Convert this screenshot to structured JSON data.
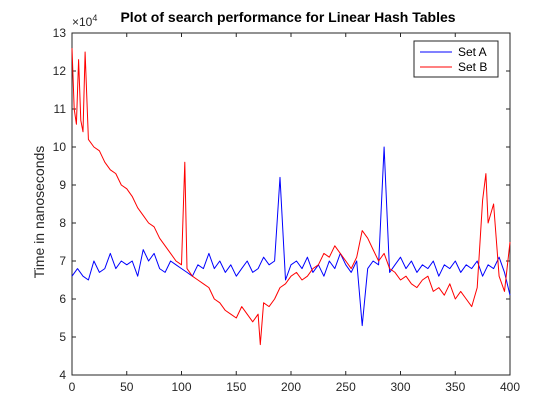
{
  "chart_data": {
    "type": "line",
    "title": "Plot of search performance for Linear Hash Tables",
    "xlabel": "",
    "ylabel": "Time in nanoseconds",
    "y_exponent_label": "×10",
    "y_exponent": "4",
    "xlim": [
      0,
      400
    ],
    "ylim": [
      4,
      13
    ],
    "x_ticks": [
      0,
      50,
      100,
      150,
      200,
      250,
      300,
      350,
      400
    ],
    "y_ticks": [
      4,
      5,
      6,
      7,
      8,
      9,
      10,
      11,
      12,
      13
    ],
    "x_tick_labels": [
      "0",
      "50",
      "100",
      "150",
      "200",
      "250",
      "300",
      "350",
      "400"
    ],
    "y_tick_labels": [
      "4",
      "5",
      "6",
      "7",
      "8",
      "9",
      "10",
      "11",
      "12",
      "13"
    ],
    "grid": false,
    "legend_position": "top-right",
    "series": [
      {
        "name": "Set A",
        "color": "#0000ff",
        "points": [
          [
            0,
            6.6
          ],
          [
            5,
            6.8
          ],
          [
            10,
            6.6
          ],
          [
            15,
            6.5
          ],
          [
            20,
            7.0
          ],
          [
            25,
            6.7
          ],
          [
            30,
            6.8
          ],
          [
            35,
            7.2
          ],
          [
            40,
            6.8
          ],
          [
            45,
            7.0
          ],
          [
            50,
            6.9
          ],
          [
            55,
            7.0
          ],
          [
            60,
            6.6
          ],
          [
            65,
            7.3
          ],
          [
            70,
            7.0
          ],
          [
            75,
            7.2
          ],
          [
            80,
            6.8
          ],
          [
            85,
            6.7
          ],
          [
            90,
            7.0
          ],
          [
            95,
            6.9
          ],
          [
            100,
            6.8
          ],
          [
            105,
            6.7
          ],
          [
            110,
            6.6
          ],
          [
            115,
            6.9
          ],
          [
            120,
            6.8
          ],
          [
            125,
            7.2
          ],
          [
            130,
            6.8
          ],
          [
            135,
            7.0
          ],
          [
            140,
            6.7
          ],
          [
            145,
            6.9
          ],
          [
            150,
            6.6
          ],
          [
            155,
            6.8
          ],
          [
            160,
            7.0
          ],
          [
            165,
            6.7
          ],
          [
            170,
            6.8
          ],
          [
            175,
            7.1
          ],
          [
            180,
            6.9
          ],
          [
            185,
            7.0
          ],
          [
            190,
            9.2
          ],
          [
            195,
            6.5
          ],
          [
            200,
            6.9
          ],
          [
            205,
            7.0
          ],
          [
            210,
            6.8
          ],
          [
            215,
            7.1
          ],
          [
            220,
            6.7
          ],
          [
            225,
            6.9
          ],
          [
            230,
            6.6
          ],
          [
            235,
            7.0
          ],
          [
            240,
            6.8
          ],
          [
            245,
            7.2
          ],
          [
            250,
            6.9
          ],
          [
            255,
            6.7
          ],
          [
            260,
            7.0
          ],
          [
            265,
            5.3
          ],
          [
            270,
            6.8
          ],
          [
            275,
            7.0
          ],
          [
            280,
            6.9
          ],
          [
            285,
            10.0
          ],
          [
            290,
            6.7
          ],
          [
            295,
            6.9
          ],
          [
            300,
            7.1
          ],
          [
            305,
            6.8
          ],
          [
            310,
            7.0
          ],
          [
            315,
            6.7
          ],
          [
            320,
            6.9
          ],
          [
            325,
            6.8
          ],
          [
            330,
            7.0
          ],
          [
            335,
            6.6
          ],
          [
            340,
            6.9
          ],
          [
            345,
            6.8
          ],
          [
            350,
            7.0
          ],
          [
            355,
            6.7
          ],
          [
            360,
            6.9
          ],
          [
            365,
            6.8
          ],
          [
            370,
            7.0
          ],
          [
            375,
            6.6
          ],
          [
            380,
            6.9
          ],
          [
            385,
            6.8
          ],
          [
            390,
            7.1
          ],
          [
            395,
            6.7
          ],
          [
            400,
            6.1
          ]
        ]
      },
      {
        "name": "Set B",
        "color": "#ff0000",
        "points": [
          [
            0,
            12.6
          ],
          [
            2,
            11.0
          ],
          [
            4,
            10.6
          ],
          [
            6,
            12.3
          ],
          [
            8,
            10.7
          ],
          [
            10,
            10.4
          ],
          [
            12,
            12.5
          ],
          [
            15,
            10.2
          ],
          [
            20,
            10.0
          ],
          [
            25,
            9.9
          ],
          [
            30,
            9.6
          ],
          [
            35,
            9.4
          ],
          [
            40,
            9.3
          ],
          [
            45,
            9.0
          ],
          [
            50,
            8.9
          ],
          [
            55,
            8.7
          ],
          [
            60,
            8.4
          ],
          [
            65,
            8.2
          ],
          [
            70,
            8.0
          ],
          [
            75,
            7.9
          ],
          [
            80,
            7.6
          ],
          [
            85,
            7.4
          ],
          [
            90,
            7.2
          ],
          [
            95,
            7.0
          ],
          [
            100,
            6.9
          ],
          [
            103,
            9.6
          ],
          [
            105,
            6.8
          ],
          [
            110,
            6.6
          ],
          [
            115,
            6.5
          ],
          [
            120,
            6.4
          ],
          [
            125,
            6.3
          ],
          [
            130,
            6.0
          ],
          [
            135,
            5.9
          ],
          [
            140,
            5.7
          ],
          [
            145,
            5.6
          ],
          [
            150,
            5.5
          ],
          [
            155,
            5.8
          ],
          [
            160,
            5.6
          ],
          [
            165,
            5.4
          ],
          [
            170,
            5.6
          ],
          [
            172,
            4.8
          ],
          [
            175,
            5.9
          ],
          [
            180,
            5.8
          ],
          [
            185,
            6.0
          ],
          [
            190,
            6.3
          ],
          [
            195,
            6.4
          ],
          [
            200,
            6.6
          ],
          [
            205,
            6.7
          ],
          [
            210,
            6.5
          ],
          [
            215,
            6.6
          ],
          [
            220,
            6.8
          ],
          [
            225,
            6.9
          ],
          [
            230,
            7.2
          ],
          [
            235,
            7.1
          ],
          [
            240,
            7.4
          ],
          [
            245,
            7.2
          ],
          [
            250,
            7.0
          ],
          [
            255,
            6.8
          ],
          [
            260,
            7.1
          ],
          [
            265,
            7.8
          ],
          [
            270,
            7.6
          ],
          [
            275,
            7.3
          ],
          [
            280,
            7.0
          ],
          [
            285,
            7.2
          ],
          [
            290,
            6.8
          ],
          [
            295,
            6.7
          ],
          [
            300,
            6.5
          ],
          [
            305,
            6.6
          ],
          [
            310,
            6.4
          ],
          [
            315,
            6.3
          ],
          [
            320,
            6.5
          ],
          [
            325,
            6.6
          ],
          [
            330,
            6.2
          ],
          [
            335,
            6.3
          ],
          [
            340,
            6.1
          ],
          [
            345,
            6.4
          ],
          [
            350,
            6.0
          ],
          [
            355,
            6.2
          ],
          [
            360,
            6.0
          ],
          [
            365,
            5.8
          ],
          [
            370,
            6.3
          ],
          [
            375,
            8.6
          ],
          [
            378,
            9.3
          ],
          [
            380,
            8.0
          ],
          [
            385,
            8.5
          ],
          [
            390,
            6.6
          ],
          [
            395,
            6.2
          ],
          [
            400,
            7.5
          ]
        ]
      }
    ]
  },
  "figure": {
    "background": "#ffffff",
    "axes_color": "#262626",
    "box": true
  }
}
